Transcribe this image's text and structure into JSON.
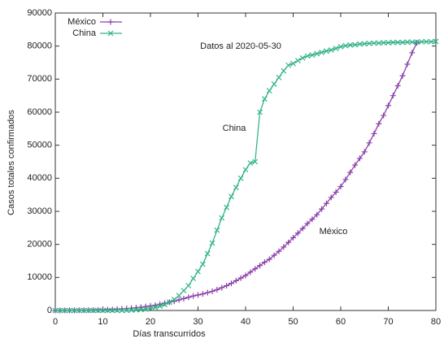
{
  "chart_data": {
    "type": "line",
    "xlabel": "Días transcurridos",
    "ylabel": "Casos totales confirmados",
    "annotations": [
      "Datos al 2020-05-30",
      "China",
      "México"
    ],
    "legend": "upper left",
    "xlim": [
      0,
      80
    ],
    "xticks": [
      0,
      10,
      20,
      30,
      40,
      50,
      60,
      70,
      80
    ],
    "ylim": [
      0,
      90000
    ],
    "yticks": [
      0,
      10000,
      20000,
      30000,
      40000,
      50000,
      60000,
      70000,
      80000,
      90000
    ],
    "series": [
      {
        "name": "México",
        "color": "#8b3fa8",
        "marker": "+",
        "x": [
          0,
          1,
          2,
          3,
          4,
          5,
          6,
          7,
          8,
          9,
          10,
          11,
          12,
          13,
          14,
          15,
          16,
          17,
          18,
          19,
          20,
          21,
          22,
          23,
          24,
          25,
          26,
          27,
          28,
          29,
          30,
          31,
          32,
          33,
          34,
          35,
          36,
          37,
          38,
          39,
          40,
          41,
          42,
          43,
          44,
          45,
          46,
          47,
          48,
          49,
          50,
          51,
          52,
          53,
          54,
          55,
          56,
          57,
          58,
          59,
          60,
          61,
          62,
          63,
          64,
          65,
          66,
          67,
          68,
          69,
          70,
          71,
          72,
          73,
          74,
          75,
          76
        ],
        "values": [
          0,
          10,
          20,
          30,
          40,
          60,
          80,
          100,
          130,
          160,
          200,
          250,
          320,
          400,
          480,
          580,
          700,
          850,
          1000,
          1200,
          1400,
          1600,
          1900,
          2200,
          2500,
          2800,
          3200,
          3600,
          4000,
          4400,
          4700,
          5000,
          5400,
          5800,
          6300,
          6900,
          7500,
          8200,
          9000,
          9800,
          10600,
          11600,
          12600,
          13600,
          14600,
          15500,
          16700,
          17900,
          19200,
          20600,
          22000,
          23400,
          24800,
          26300,
          27600,
          29000,
          30700,
          32400,
          34200,
          35800,
          37500,
          39600,
          41800,
          44000,
          46000,
          48000,
          50700,
          53500,
          56500,
          59000,
          62000,
          65000,
          68000,
          71000,
          74500,
          78000,
          81000
        ]
      },
      {
        "name": "China",
        "color": "#33b487",
        "marker": "x",
        "x": [
          0,
          1,
          2,
          3,
          4,
          5,
          6,
          7,
          8,
          9,
          10,
          11,
          12,
          13,
          14,
          15,
          16,
          17,
          18,
          19,
          20,
          21,
          22,
          23,
          24,
          25,
          26,
          27,
          28,
          29,
          30,
          31,
          32,
          33,
          34,
          35,
          36,
          37,
          38,
          39,
          40,
          41,
          42,
          43,
          44,
          45,
          46,
          47,
          48,
          49,
          50,
          51,
          52,
          53,
          54,
          55,
          56,
          57,
          58,
          59,
          60,
          61,
          62,
          63,
          64,
          65,
          66,
          67,
          68,
          69,
          70,
          71,
          72,
          73,
          74,
          75,
          76,
          77,
          78,
          79,
          80
        ],
        "values": [
          0,
          0,
          0,
          0,
          0,
          0,
          0,
          0,
          0,
          0,
          0,
          0,
          0,
          0,
          0,
          50,
          100,
          200,
          300,
          400,
          600,
          900,
          1300,
          1800,
          2500,
          3300,
          4500,
          6000,
          7500,
          9700,
          11800,
          14000,
          17200,
          20400,
          24300,
          28000,
          31200,
          34500,
          37200,
          40000,
          42600,
          44600,
          45000,
          60000,
          64000,
          66500,
          68500,
          70500,
          72500,
          74200,
          74700,
          75600,
          76400,
          77000,
          77300,
          77700,
          78100,
          78500,
          78800,
          79300,
          79800,
          80100,
          80300,
          80400,
          80600,
          80700,
          80800,
          80900,
          80900,
          81000,
          81000,
          81100,
          81100,
          81100,
          81200,
          81200,
          81200,
          81300,
          81300,
          81300,
          81400
        ]
      }
    ]
  }
}
